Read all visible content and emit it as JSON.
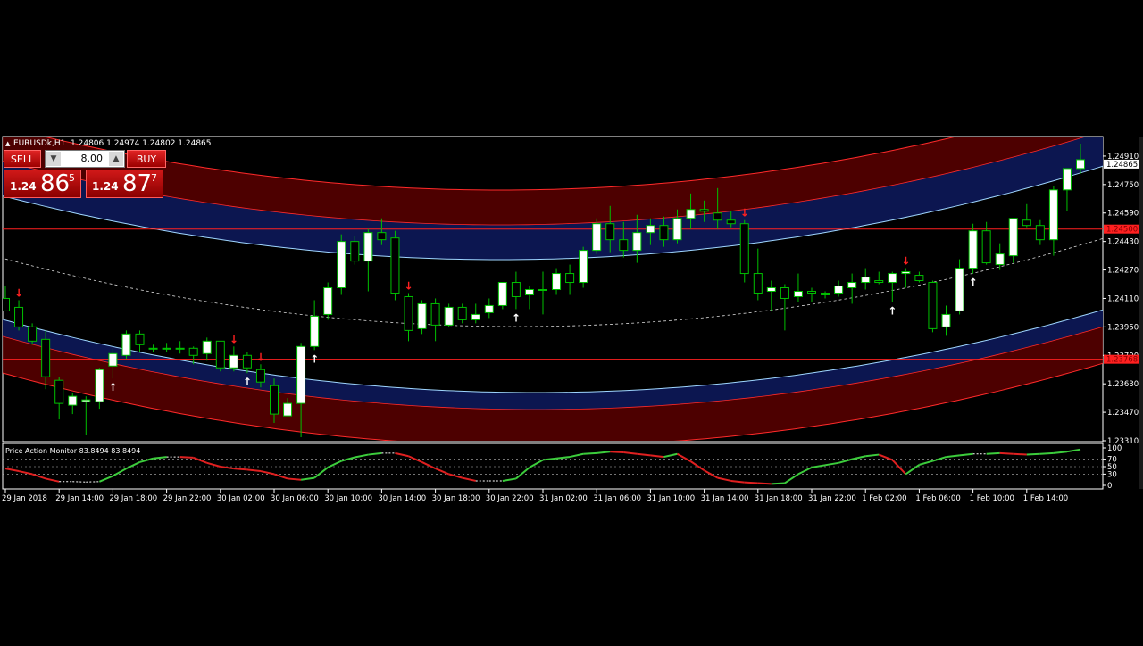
{
  "symbol_header": "EURUSDk,H1  1.24806 1.24974 1.24802 1.24865",
  "one_click": {
    "sell_label": "SELL",
    "buy_label": "BUY",
    "lot": "8.00",
    "sell_price_prefix": "1.24",
    "sell_price_big": "86",
    "sell_price_small": "5",
    "buy_price_prefix": "1.24",
    "buy_price_big": "87",
    "buy_price_small": "7"
  },
  "indicator_label": "Price Action Monitor 83.8494 83.8494",
  "colors": {
    "background": "#000000",
    "bull_candle": "#ffffff",
    "bear_candle": "#000000",
    "wick": "#00c000",
    "band_outer": "#5a0000",
    "band_inner": "#0c1650",
    "band_line": "#9fd6ff",
    "red_line": "#ff2020",
    "osc_up": "#3ccd3c",
    "osc_down": "#e02020",
    "arrow_up": "#ffffff",
    "arrow_down": "#ff2020"
  },
  "chart_data": {
    "type": "candlestick",
    "price_axis": {
      "ylim": [
        1.2331,
        1.2502
      ],
      "ticks": [
        "1.24910",
        "1.24750",
        "1.24590",
        "1.24430",
        "1.24270",
        "1.24110",
        "1.23950",
        "1.23790",
        "1.23630",
        "1.23470",
        "1.23310"
      ],
      "tick_values": [
        1.2491,
        1.2475,
        1.2459,
        1.2443,
        1.2427,
        1.2411,
        1.2395,
        1.2379,
        1.2363,
        1.2347,
        1.2331
      ]
    },
    "price_labels": [
      {
        "text": "1.24865",
        "value": 1.24865,
        "bg": "#ffffff",
        "fg": "#000000"
      },
      {
        "text": "1.24500",
        "value": 1.245,
        "bg": "#ff2020",
        "fg": "#800000"
      },
      {
        "text": "1.23768",
        "value": 1.23768,
        "bg": "#ff2020",
        "fg": "#800000"
      }
    ],
    "horizontal_lines": [
      1.245,
      1.23768
    ],
    "time_labels": [
      "29 Jan 2018",
      "29 Jan 14:00",
      "29 Jan 18:00",
      "29 Jan 22:00",
      "30 Jan 02:00",
      "30 Jan 06:00",
      "30 Jan 10:00",
      "30 Jan 14:00",
      "30 Jan 18:00",
      "30 Jan 22:00",
      "31 Jan 02:00",
      "31 Jan 06:00",
      "31 Jan 10:00",
      "31 Jan 14:00",
      "31 Jan 18:00",
      "31 Jan 22:00",
      "1 Feb 02:00",
      "1 Feb 06:00",
      "1 Feb 10:00",
      "1 Feb 14:00"
    ],
    "time_label_bar_index": [
      0,
      4,
      8,
      12,
      16,
      20,
      24,
      28,
      32,
      36,
      40,
      44,
      48,
      52,
      56,
      60,
      64,
      68,
      72,
      76
    ],
    "candles": [
      [
        1.2411,
        1.2418,
        1.2405,
        1.2404
      ],
      [
        1.2406,
        1.241,
        1.2393,
        1.2395
      ],
      [
        1.2395,
        1.2397,
        1.2385,
        1.2387
      ],
      [
        1.2388,
        1.2393,
        1.236,
        1.2367
      ],
      [
        1.2365,
        1.2367,
        1.2343,
        1.2352
      ],
      [
        1.2351,
        1.2358,
        1.2346,
        1.2356
      ],
      [
        1.2353,
        1.2356,
        1.2334,
        1.2354
      ],
      [
        1.2353,
        1.2372,
        1.2349,
        1.2371
      ],
      [
        1.2373,
        1.2383,
        1.2366,
        1.238
      ],
      [
        1.2379,
        1.2393,
        1.2377,
        1.2391
      ],
      [
        1.2391,
        1.2393,
        1.2381,
        1.2385
      ],
      [
        1.2383,
        1.2385,
        1.2381,
        1.2383
      ],
      [
        1.2383,
        1.2386,
        1.2381,
        1.2383
      ],
      [
        1.2383,
        1.2387,
        1.238,
        1.2383
      ],
      [
        1.2383,
        1.2384,
        1.2374,
        1.2379
      ],
      [
        1.238,
        1.2389,
        1.2376,
        1.2387
      ],
      [
        1.2387,
        1.2387,
        1.237,
        1.2372
      ],
      [
        1.2372,
        1.2384,
        1.237,
        1.2379
      ],
      [
        1.2379,
        1.2381,
        1.2369,
        1.2372
      ],
      [
        1.2371,
        1.2374,
        1.2361,
        1.2364
      ],
      [
        1.2362,
        1.2366,
        1.2341,
        1.2346
      ],
      [
        1.2345,
        1.2355,
        1.2345,
        1.2352
      ],
      [
        1.2352,
        1.2386,
        1.2333,
        1.2384
      ],
      [
        1.2384,
        1.241,
        1.2382,
        1.2401
      ],
      [
        1.2402,
        1.242,
        1.2399,
        1.2417
      ],
      [
        1.2417,
        1.2447,
        1.2413,
        1.2443
      ],
      [
        1.2443,
        1.2446,
        1.243,
        1.2432
      ],
      [
        1.2432,
        1.245,
        1.2415,
        1.2448
      ],
      [
        1.2448,
        1.2456,
        1.2441,
        1.2444
      ],
      [
        1.2445,
        1.2449,
        1.241,
        1.2414
      ],
      [
        1.2412,
        1.2414,
        1.2387,
        1.2393
      ],
      [
        1.2394,
        1.241,
        1.2391,
        1.2408
      ],
      [
        1.2408,
        1.2411,
        1.2387,
        1.2396
      ],
      [
        1.2396,
        1.2408,
        1.2395,
        1.2406
      ],
      [
        1.2406,
        1.2408,
        1.2397,
        1.2399
      ],
      [
        1.2399,
        1.2408,
        1.2397,
        1.2402
      ],
      [
        1.2403,
        1.2411,
        1.24,
        1.2407
      ],
      [
        1.2407,
        1.242,
        1.2405,
        1.242
      ],
      [
        1.242,
        1.2426,
        1.2405,
        1.2412
      ],
      [
        1.2413,
        1.2418,
        1.2405,
        1.2416
      ],
      [
        1.2416,
        1.2426,
        1.2402,
        1.2416
      ],
      [
        1.2416,
        1.2428,
        1.2413,
        1.2425
      ],
      [
        1.2425,
        1.243,
        1.2413,
        1.242
      ],
      [
        1.242,
        1.244,
        1.2417,
        1.2438
      ],
      [
        1.2438,
        1.2456,
        1.2436,
        1.2453
      ],
      [
        1.2453,
        1.2463,
        1.2437,
        1.2444
      ],
      [
        1.2444,
        1.2454,
        1.2434,
        1.2438
      ],
      [
        1.2438,
        1.2458,
        1.2431,
        1.2448
      ],
      [
        1.2448,
        1.2456,
        1.2441,
        1.2452
      ],
      [
        1.2452,
        1.2457,
        1.244,
        1.2444
      ],
      [
        1.2444,
        1.2461,
        1.2442,
        1.2456
      ],
      [
        1.2456,
        1.247,
        1.245,
        1.2461
      ],
      [
        1.2461,
        1.2466,
        1.2454,
        1.246
      ],
      [
        1.2459,
        1.2473,
        1.245,
        1.2455
      ],
      [
        1.2455,
        1.246,
        1.2451,
        1.2453
      ],
      [
        1.2453,
        1.2455,
        1.242,
        1.2425
      ],
      [
        1.2425,
        1.2439,
        1.241,
        1.2414
      ],
      [
        1.2415,
        1.2421,
        1.2404,
        1.2417
      ],
      [
        1.2417,
        1.2419,
        1.2393,
        1.2411
      ],
      [
        1.2412,
        1.2425,
        1.2409,
        1.2415
      ],
      [
        1.2415,
        1.2417,
        1.2409,
        1.2414
      ],
      [
        1.2414,
        1.2415,
        1.2411,
        1.2413
      ],
      [
        1.2414,
        1.2421,
        1.2412,
        1.2418
      ],
      [
        1.2417,
        1.2425,
        1.2408,
        1.242
      ],
      [
        1.242,
        1.2428,
        1.2416,
        1.2423
      ],
      [
        1.2421,
        1.2426,
        1.2419,
        1.242
      ],
      [
        1.242,
        1.2426,
        1.2409,
        1.2425
      ],
      [
        1.2425,
        1.2428,
        1.2417,
        1.2426
      ],
      [
        1.2424,
        1.2426,
        1.242,
        1.2421
      ],
      [
        1.242,
        1.2421,
        1.2392,
        1.2394
      ],
      [
        1.2395,
        1.2407,
        1.239,
        1.2402
      ],
      [
        1.2404,
        1.2433,
        1.2402,
        1.2428
      ],
      [
        1.2428,
        1.2453,
        1.2425,
        1.2449
      ],
      [
        1.2449,
        1.2454,
        1.243,
        1.2431
      ],
      [
        1.243,
        1.2442,
        1.2427,
        1.2436
      ],
      [
        1.2435,
        1.2456,
        1.2431,
        1.2456
      ],
      [
        1.2455,
        1.2464,
        1.2451,
        1.2452
      ],
      [
        1.2452,
        1.2455,
        1.2441,
        1.2444
      ],
      [
        1.2444,
        1.2474,
        1.2435,
        1.2472
      ],
      [
        1.2472,
        1.2484,
        1.246,
        1.2484
      ],
      [
        1.2484,
        1.2498,
        1.2481,
        1.2489
      ]
    ],
    "signals": [
      {
        "bar": 1,
        "dir": "down"
      },
      {
        "bar": 8,
        "dir": "up"
      },
      {
        "bar": 17,
        "dir": "down"
      },
      {
        "bar": 18,
        "dir": "up"
      },
      {
        "bar": 19,
        "dir": "down"
      },
      {
        "bar": 23,
        "dir": "up"
      },
      {
        "bar": 30,
        "dir": "down"
      },
      {
        "bar": 38,
        "dir": "up"
      },
      {
        "bar": 55,
        "dir": "down"
      },
      {
        "bar": 66,
        "dir": "up"
      },
      {
        "bar": 67,
        "dir": "down"
      },
      {
        "bar": 72,
        "dir": "up"
      }
    ],
    "oscillator": {
      "name": "Price Action Monitor",
      "value": 83.8494,
      "ylim": [
        0,
        100
      ],
      "ticks": [
        "100",
        "70",
        "50",
        "30",
        "0"
      ],
      "tick_values": [
        100,
        70,
        50,
        30,
        0
      ],
      "values": [
        45,
        38,
        30,
        18,
        10,
        10,
        9,
        10,
        25,
        45,
        62,
        72,
        76,
        76,
        74,
        60,
        50,
        45,
        42,
        38,
        30,
        18,
        15,
        20,
        48,
        65,
        75,
        82,
        86,
        86,
        78,
        62,
        45,
        30,
        20,
        12,
        12,
        12,
        18,
        48,
        68,
        72,
        76,
        84,
        86,
        90,
        88,
        84,
        80,
        76,
        84,
        64,
        40,
        20,
        12,
        8,
        6,
        4,
        6,
        30,
        48,
        54,
        60,
        70,
        78,
        82,
        68,
        30,
        55,
        65,
        76,
        80,
        84,
        84,
        86,
        84,
        82,
        84,
        86,
        90,
        96
      ]
    }
  }
}
